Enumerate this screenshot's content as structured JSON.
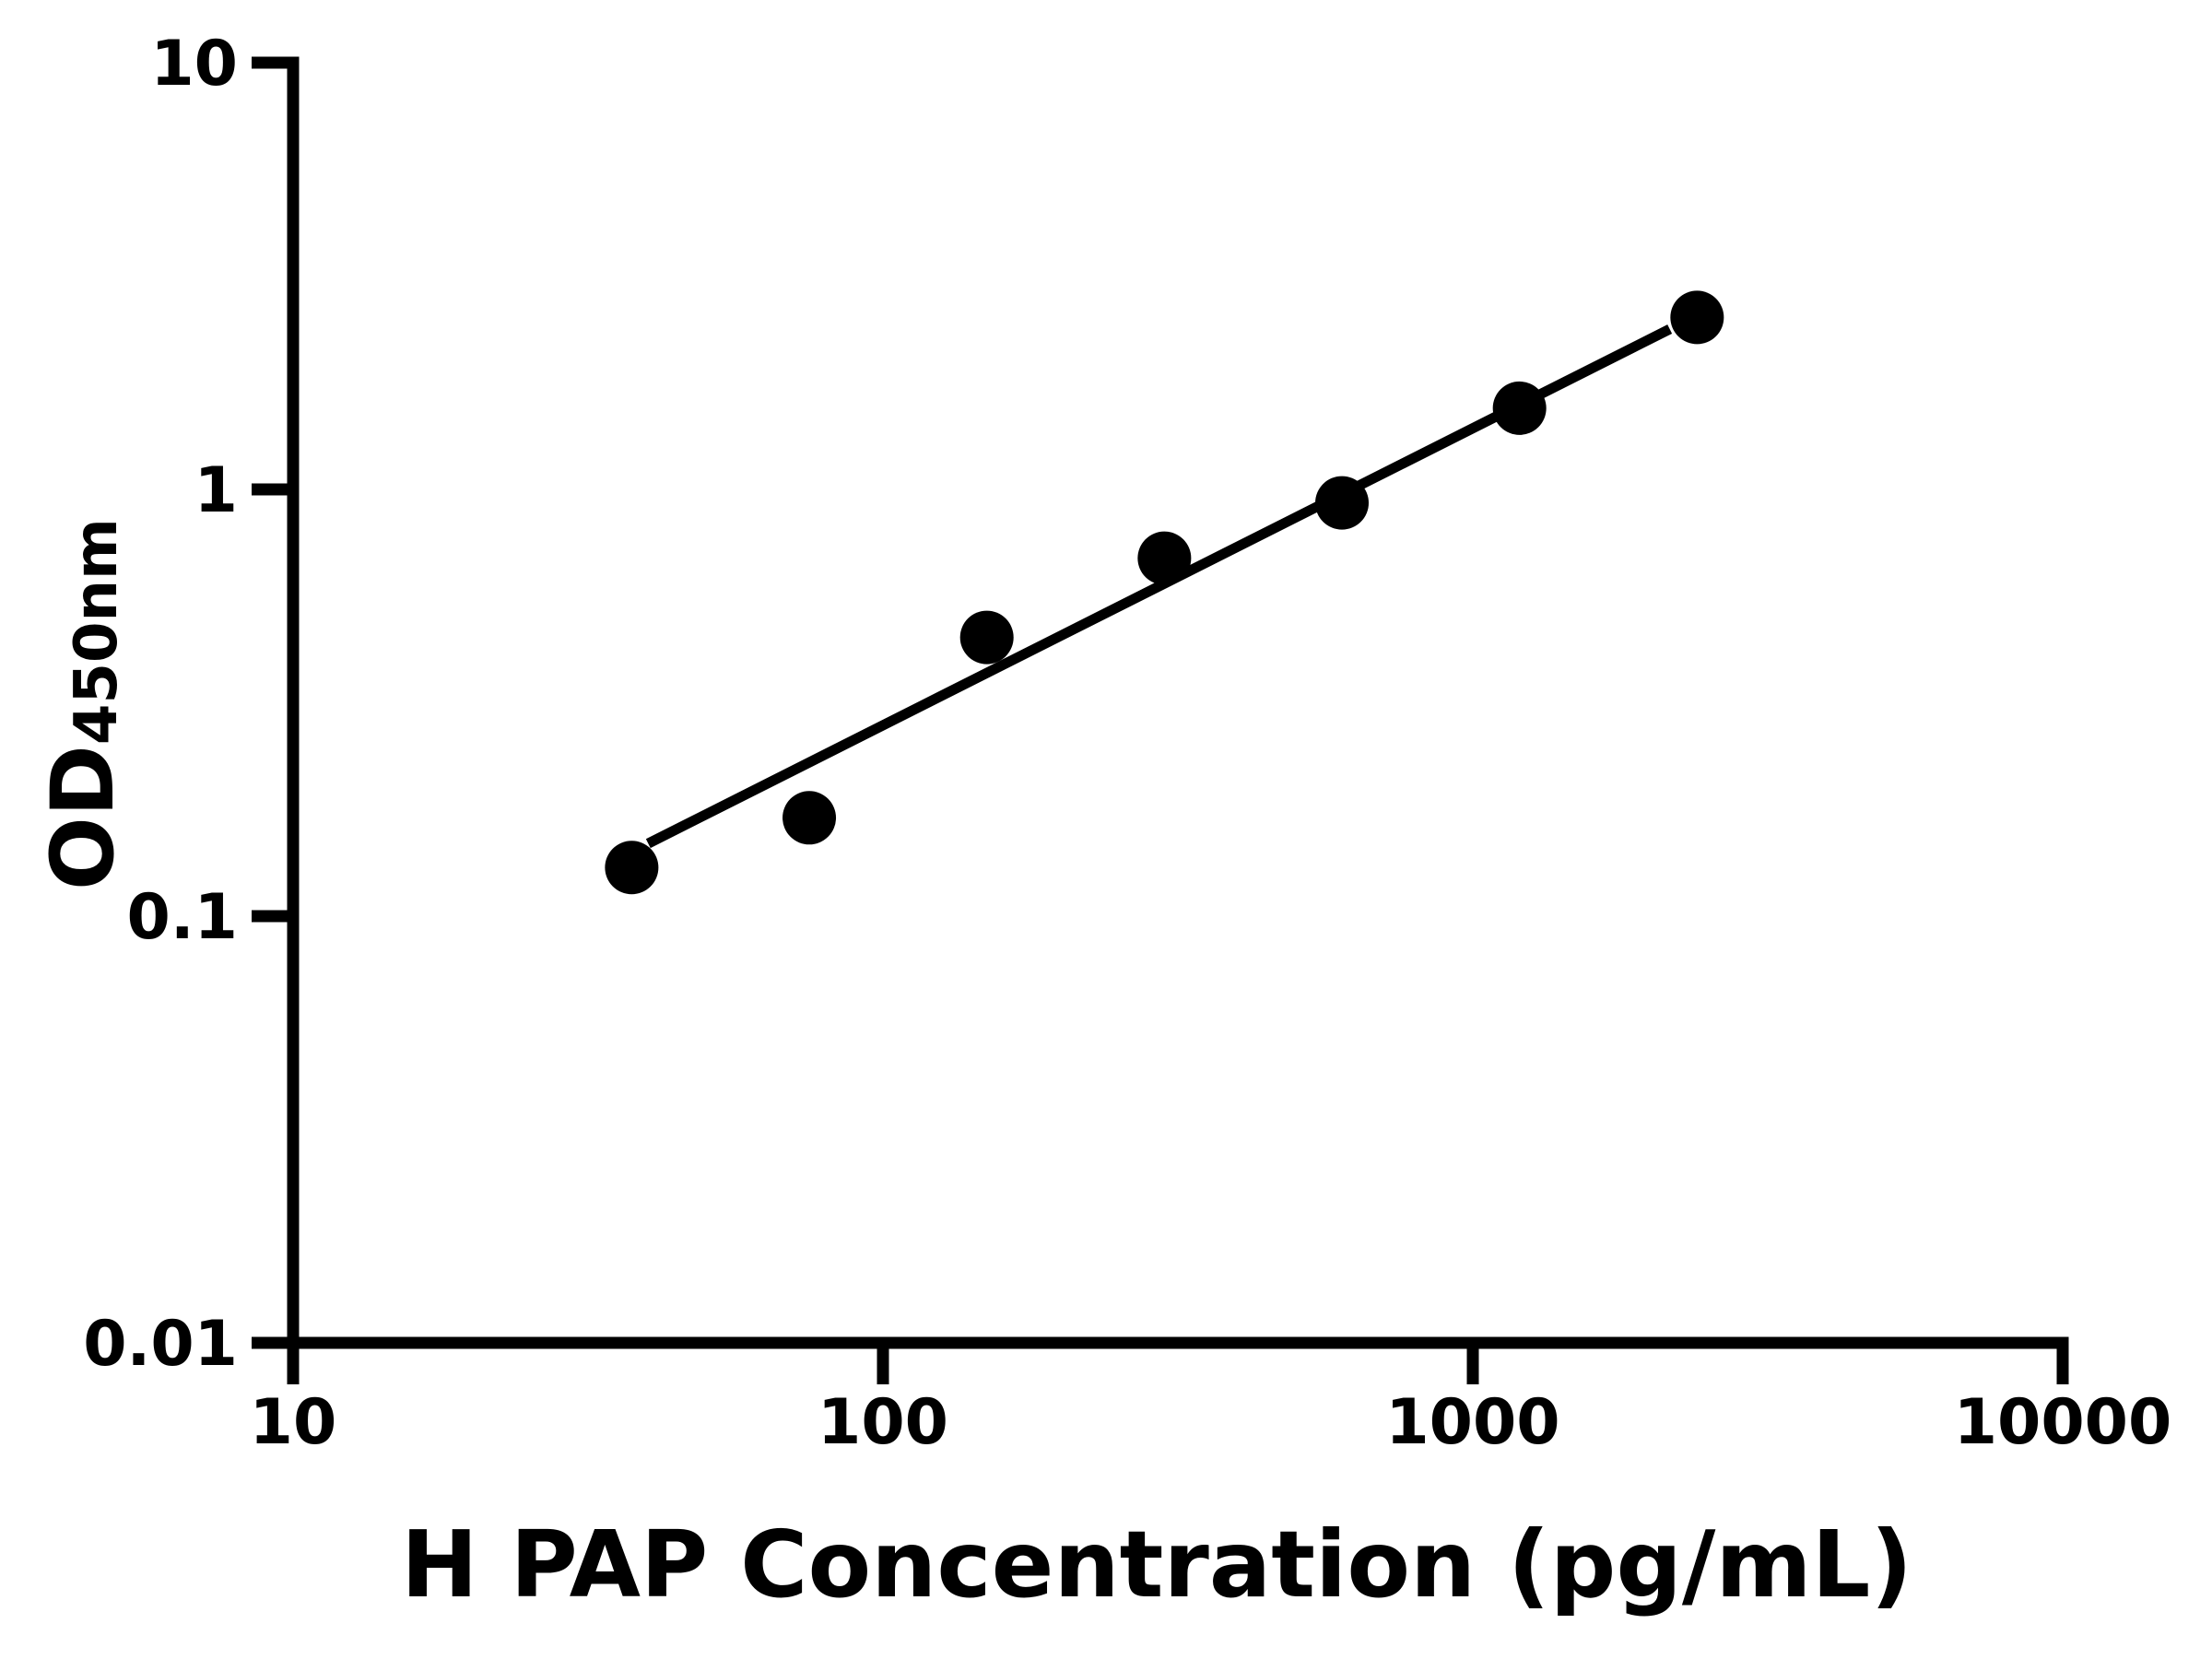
{
  "chart_data": {
    "type": "scatter",
    "title": "",
    "xlabel": "H PAP Concentration (pg/mL)",
    "ylabel_main": "OD",
    "ylabel_sub": "450nm",
    "xscale": "log",
    "yscale": "log",
    "xlim": [
      10,
      10000
    ],
    "ylim": [
      0.01,
      10
    ],
    "grid": false,
    "legend": null,
    "x_ticks": [
      {
        "value": 10,
        "label": "10"
      },
      {
        "value": 100,
        "label": "100"
      },
      {
        "value": 1000,
        "label": "1000"
      },
      {
        "value": 10000,
        "label": "10000"
      }
    ],
    "y_ticks": [
      {
        "value": 10,
        "label": "10"
      },
      {
        "value": 1,
        "label": "1"
      },
      {
        "value": 0.1,
        "label": "0.1"
      },
      {
        "value": 0.01,
        "label": "0.01"
      }
    ],
    "points": [
      {
        "x": 37.5,
        "od": 0.13
      },
      {
        "x": 75,
        "od": 0.17
      },
      {
        "x": 150,
        "od": 0.45
      },
      {
        "x": 300,
        "od": 0.69
      },
      {
        "x": 600,
        "od": 0.93
      },
      {
        "x": 1200,
        "od": 1.55
      },
      {
        "x": 2400,
        "od": 2.53
      }
    ],
    "trendline": {
      "x": [
        40,
        2157
      ],
      "od": [
        0.148,
        2.375
      ]
    },
    "marker_color": "#000000",
    "line_color": "#000000",
    "axis_color": "#000000",
    "background_color": "#ffffff"
  }
}
